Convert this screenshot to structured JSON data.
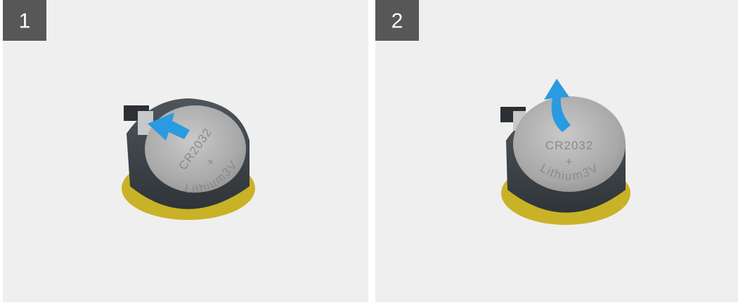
{
  "panels": [
    {
      "step": "1",
      "battery": {
        "model": "CR2032",
        "polarity": "+",
        "chemistry": "Lithium3V"
      }
    },
    {
      "step": "2",
      "battery": {
        "model": "CR2032",
        "polarity": "+",
        "chemistry": "Lithium3V"
      }
    }
  ]
}
